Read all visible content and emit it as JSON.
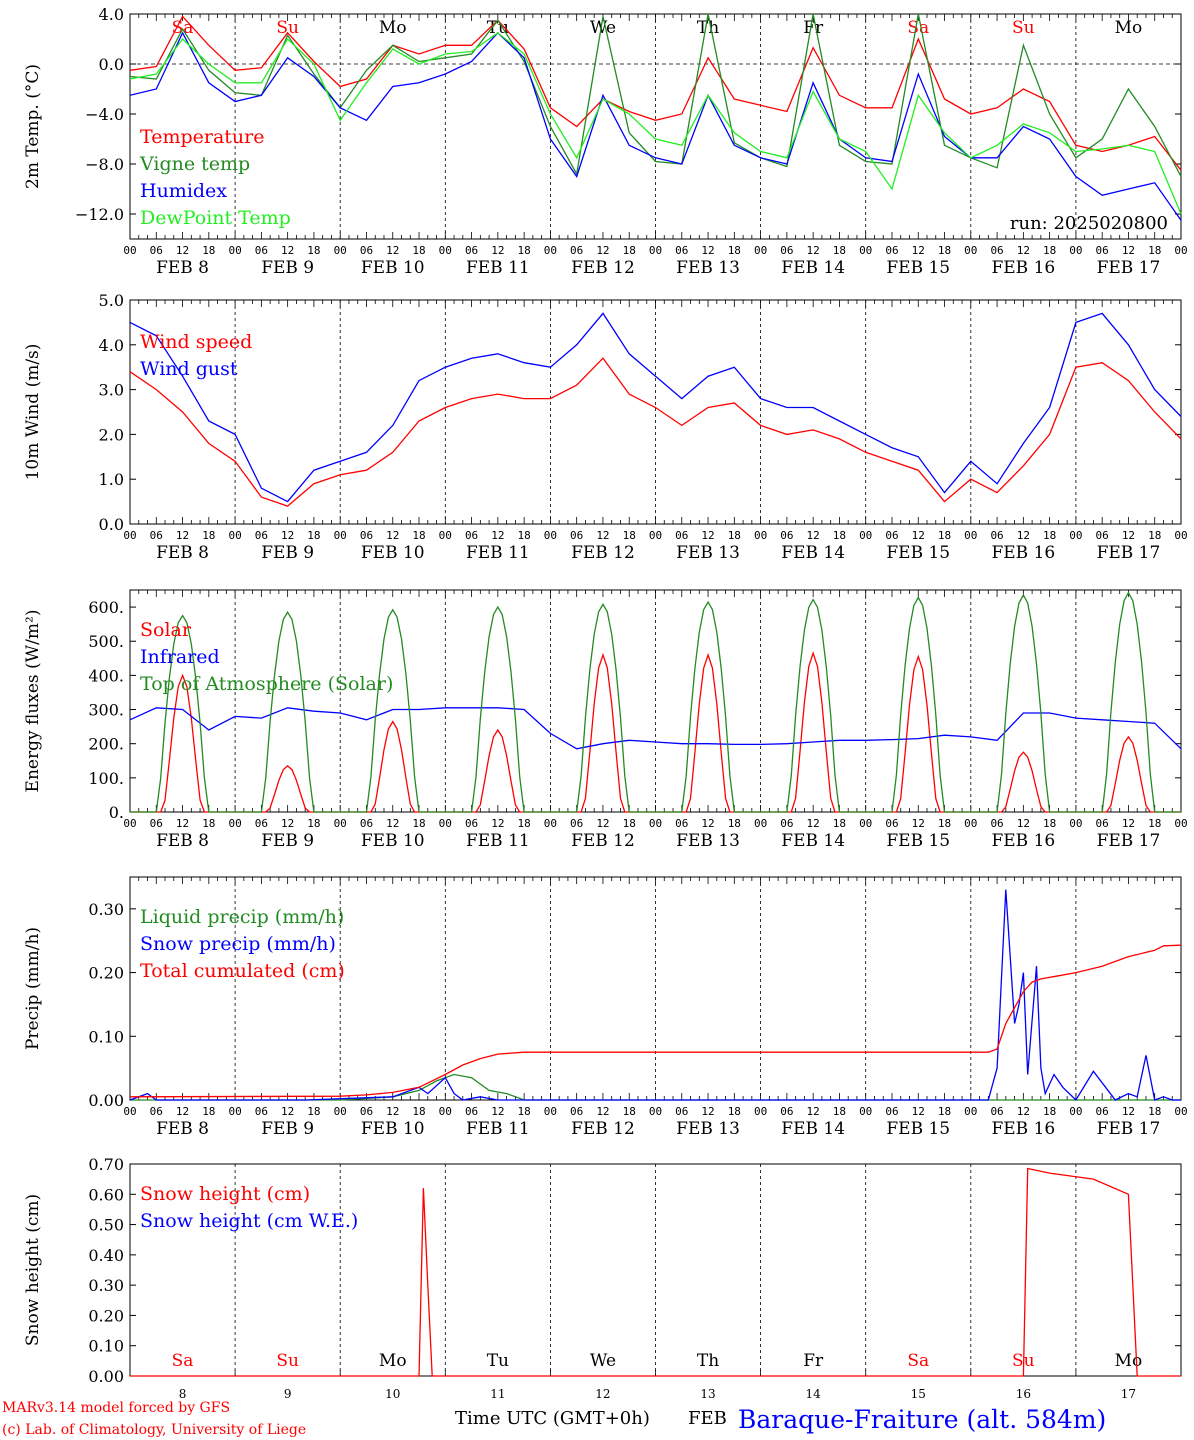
{
  "colors": {
    "red": "#ff0000",
    "dark_green": "#228b22",
    "blue": "#0000ff",
    "light_green": "#22ee22",
    "black": "#000000"
  },
  "days": [
    {
      "name": "Sa",
      "weekend": true,
      "date": "FEB  8",
      "num": "8"
    },
    {
      "name": "Su",
      "weekend": true,
      "date": "FEB  9",
      "num": "9"
    },
    {
      "name": "Mo",
      "weekend": false,
      "date": "FEB 10",
      "num": "10"
    },
    {
      "name": "Tu",
      "weekend": false,
      "date": "FEB 11",
      "num": "11"
    },
    {
      "name": "We",
      "weekend": false,
      "date": "FEB 12",
      "num": "12"
    },
    {
      "name": "Th",
      "weekend": false,
      "date": "FEB 13",
      "num": "13"
    },
    {
      "name": "Fr",
      "weekend": false,
      "date": "FEB 14",
      "num": "14"
    },
    {
      "name": "Sa",
      "weekend": true,
      "date": "FEB 15",
      "num": "15"
    },
    {
      "name": "Su",
      "weekend": true,
      "date": "FEB 16",
      "num": "16"
    },
    {
      "name": "Mo",
      "weekend": false,
      "date": "FEB 17",
      "num": "17"
    }
  ],
  "hour_ticks": [
    "00",
    "06",
    "12",
    "18"
  ],
  "final_tick": "00",
  "footer": {
    "model": "MARv3.14 model forced by GFS",
    "credit": "(c) Lab. of Climatology, University of Liege",
    "xlabel": "Time UTC (GMT+0h)",
    "month": "FEB",
    "station": "Baraque-Fraiture (alt. 584m)"
  },
  "chart_data": [
    {
      "type": "line",
      "ylabel": "2m Temp. (°C)",
      "ylim": [
        -14,
        4
      ],
      "yticks": [
        4,
        0,
        -4,
        -8,
        -12
      ],
      "ytick_labels": [
        "4.0",
        "0.0",
        "−4.0",
        "−8.0",
        "−12.0"
      ],
      "zero_line": true,
      "day_labels": true,
      "run_label": "run: 2025020800",
      "x_hours": [
        0,
        6,
        12,
        18,
        24,
        30,
        36,
        42,
        48,
        54,
        60,
        66,
        72,
        78,
        84,
        90,
        96,
        102,
        108,
        114,
        120,
        126,
        132,
        138,
        144,
        150,
        156,
        162,
        168,
        174,
        180,
        186,
        192,
        198,
        204,
        210,
        216,
        222,
        228,
        234,
        240
      ],
      "series": [
        {
          "name": "Temperature",
          "color": "#ff0000",
          "values": [
            -0.5,
            -0.2,
            3.8,
            1.5,
            -0.5,
            -0.3,
            2.5,
            0.2,
            -1.8,
            -1.2,
            1.5,
            0.8,
            1.5,
            1.5,
            3.5,
            1.2,
            -3.5,
            -5.0,
            -2.8,
            -3.8,
            -4.5,
            -4.0,
            0.5,
            -2.8,
            -3.3,
            -3.8,
            1.3,
            -2.5,
            -3.5,
            -3.5,
            2.0,
            -2.8,
            -4.0,
            -3.5,
            -2.0,
            -3.0,
            -6.5,
            -7.0,
            -6.5,
            -5.8,
            -8.5
          ]
        },
        {
          "name": "Vigne temp",
          "color": "#228b22",
          "values": [
            -1.0,
            -1.2,
            2.8,
            -0.5,
            -2.3,
            -2.5,
            2.3,
            -0.8,
            -3.5,
            -0.5,
            1.5,
            0.2,
            0.5,
            0.8,
            3.5,
            0.2,
            -5.0,
            -8.8,
            3.8,
            -5.5,
            -7.8,
            -8.0,
            4.0,
            -6.3,
            -7.5,
            -8.2,
            4.0,
            -6.5,
            -7.8,
            -8.0,
            4.0,
            -6.5,
            -7.5,
            -8.3,
            1.5,
            -4.0,
            -7.5,
            -6.0,
            -2.0,
            -5.0,
            -9.0
          ]
        },
        {
          "name": "Humidex",
          "color": "#0000ff",
          "values": [
            -2.5,
            -2.0,
            2.5,
            -1.5,
            -3.0,
            -2.5,
            0.5,
            -1.0,
            -3.5,
            -4.5,
            -1.8,
            -1.5,
            -0.8,
            0.2,
            2.5,
            0.5,
            -6.0,
            -9.0,
            -2.5,
            -6.5,
            -7.5,
            -8.0,
            -2.5,
            -6.5,
            -7.5,
            -8.0,
            -1.5,
            -6.0,
            -7.5,
            -7.8,
            -0.8,
            -5.8,
            -7.5,
            -7.5,
            -5.0,
            -6.0,
            -9.0,
            -10.5,
            -10.0,
            -9.5,
            -12.5
          ]
        },
        {
          "name": "DewPoint Temp",
          "color": "#22ee22",
          "values": [
            -1.2,
            -0.8,
            2.0,
            0.0,
            -1.5,
            -1.5,
            2.0,
            0.0,
            -4.5,
            -1.5,
            1.2,
            0.0,
            0.8,
            1.0,
            2.5,
            0.8,
            -4.0,
            -7.5,
            -2.8,
            -4.0,
            -6.0,
            -6.5,
            -2.5,
            -5.5,
            -7.0,
            -7.5,
            -2.2,
            -6.0,
            -7.0,
            -10.0,
            -2.5,
            -5.5,
            -7.5,
            -6.5,
            -4.8,
            -5.5,
            -7.0,
            -6.8,
            -6.5,
            -7.0,
            -12.0
          ]
        }
      ]
    },
    {
      "type": "line",
      "ylabel": "10m Wind (m/s)",
      "ylim": [
        0,
        5
      ],
      "yticks": [
        0,
        1,
        2,
        3,
        4,
        5
      ],
      "ytick_labels": [
        "0.0",
        "1.0",
        "2.0",
        "3.0",
        "4.0",
        "5.0"
      ],
      "x_hours": [
        0,
        6,
        12,
        18,
        24,
        30,
        36,
        42,
        48,
        54,
        60,
        66,
        72,
        78,
        84,
        90,
        96,
        102,
        108,
        114,
        120,
        126,
        132,
        138,
        144,
        150,
        156,
        162,
        168,
        174,
        180,
        186,
        192,
        198,
        204,
        210,
        216,
        222,
        228,
        234,
        240
      ],
      "series": [
        {
          "name": "Wind speed",
          "color": "#ff0000",
          "values": [
            3.4,
            3.0,
            2.5,
            1.8,
            1.4,
            0.6,
            0.4,
            0.9,
            1.1,
            1.2,
            1.6,
            2.3,
            2.6,
            2.8,
            2.9,
            2.8,
            2.8,
            3.1,
            3.7,
            2.9,
            2.6,
            2.2,
            2.6,
            2.7,
            2.2,
            2.0,
            2.1,
            1.9,
            1.6,
            1.4,
            1.2,
            0.5,
            1.0,
            0.7,
            1.3,
            2.0,
            3.5,
            3.6,
            3.2,
            2.5,
            1.9
          ]
        },
        {
          "name": "Wind gust",
          "color": "#0000ff",
          "values": [
            4.5,
            4.2,
            3.3,
            2.3,
            2.0,
            0.8,
            0.5,
            1.2,
            1.4,
            1.6,
            2.2,
            3.2,
            3.5,
            3.7,
            3.8,
            3.6,
            3.5,
            4.0,
            4.7,
            3.8,
            3.3,
            2.8,
            3.3,
            3.5,
            2.8,
            2.6,
            2.6,
            2.3,
            2.0,
            1.7,
            1.5,
            0.7,
            1.4,
            0.9,
            1.8,
            2.6,
            4.5,
            4.7,
            4.0,
            3.0,
            2.4
          ]
        }
      ]
    },
    {
      "type": "line",
      "ylabel": "Energy fluxes (W/m²)",
      "ylim": [
        0,
        650
      ],
      "yticks": [
        0,
        100,
        200,
        300,
        400,
        500,
        600
      ],
      "ytick_labels": [
        "0.",
        "100.",
        "200.",
        "300.",
        "400.",
        "500.",
        "600."
      ],
      "solar_peaks": [
        400,
        135,
        265,
        240,
        460,
        460,
        465,
        455,
        175,
        220
      ],
      "toa_peaks": [
        575,
        585,
        592,
        600,
        608,
        615,
        622,
        628,
        635,
        642
      ],
      "x_hours": [
        0,
        6,
        12,
        18,
        24,
        30,
        36,
        42,
        48,
        54,
        60,
        66,
        72,
        78,
        84,
        90,
        96,
        102,
        108,
        114,
        120,
        126,
        132,
        138,
        144,
        150,
        156,
        162,
        168,
        174,
        180,
        186,
        192,
        198,
        204,
        210,
        216,
        222,
        228,
        234,
        240
      ],
      "series": [
        {
          "name": "Solar",
          "color": "#ff0000",
          "values": []
        },
        {
          "name": "Infrared",
          "color": "#0000ff",
          "values": [
            270,
            305,
            300,
            240,
            280,
            275,
            305,
            295,
            290,
            270,
            300,
            300,
            305,
            305,
            305,
            300,
            230,
            185,
            200,
            210,
            205,
            200,
            200,
            198,
            198,
            200,
            205,
            210,
            210,
            212,
            215,
            225,
            220,
            210,
            290,
            290,
            275,
            270,
            265,
            260,
            185
          ]
        },
        {
          "name": "Top of Atmosphere (Solar)",
          "color": "#228b22",
          "values": []
        }
      ]
    },
    {
      "type": "line",
      "ylabel": "Precip (mm/h)",
      "ylim": [
        0,
        0.35
      ],
      "yticks": [
        0,
        0.1,
        0.2,
        0.3
      ],
      "ytick_labels": [
        "0.00",
        "0.10",
        "0.20",
        "0.30"
      ],
      "series": [
        {
          "name": "Liquid precip (mm/h)",
          "color": "#228b22",
          "x_hours": [
            0,
            48,
            60,
            66,
            70,
            74,
            78,
            82,
            86,
            90,
            240
          ],
          "values": [
            0,
            0,
            0.005,
            0.015,
            0.03,
            0.04,
            0.035,
            0.015,
            0.01,
            0,
            0
          ]
        },
        {
          "name": "Snow precip (mm/h)",
          "color": "#0000ff",
          "x_hours": [
            0,
            4,
            6,
            40,
            60,
            66,
            68,
            72,
            74,
            76,
            80,
            84,
            196,
            198,
            200,
            202,
            203,
            204,
            205,
            207,
            208,
            209,
            211,
            213,
            216,
            220,
            225,
            228,
            230,
            232,
            234,
            236,
            238,
            240
          ],
          "values": [
            0,
            0.01,
            0,
            0,
            0.005,
            0.02,
            0.01,
            0.035,
            0.01,
            0,
            0.005,
            0,
            0,
            0.05,
            0.33,
            0.12,
            0.15,
            0.2,
            0.04,
            0.21,
            0.05,
            0.01,
            0.04,
            0.02,
            0,
            0.045,
            0,
            0.01,
            0.005,
            0.07,
            0,
            0.005,
            0,
            0
          ]
        },
        {
          "name": "Total cumulated (cm)",
          "color": "#ff0000",
          "x_hours": [
            0,
            48,
            54,
            60,
            66,
            72,
            76,
            80,
            84,
            90,
            96,
            190,
            196,
            198,
            200,
            204,
            206,
            208,
            212,
            216,
            222,
            228,
            234,
            236,
            240
          ],
          "values": [
            0.005,
            0.006,
            0.008,
            0.012,
            0.02,
            0.04,
            0.055,
            0.065,
            0.072,
            0.075,
            0.075,
            0.075,
            0.075,
            0.08,
            0.12,
            0.17,
            0.185,
            0.19,
            0.195,
            0.2,
            0.21,
            0.225,
            0.235,
            0.242,
            0.243
          ]
        }
      ]
    },
    {
      "type": "line",
      "ylabel": "Snow height (cm)",
      "ylim": [
        0,
        0.7
      ],
      "yticks": [
        0,
        0.1,
        0.2,
        0.3,
        0.4,
        0.5,
        0.6,
        0.7
      ],
      "ytick_labels": [
        "0.00",
        "0.10",
        "0.20",
        "0.30",
        "0.40",
        "0.50",
        "0.60",
        "0.70"
      ],
      "day_labels_bottom": true,
      "series": [
        {
          "name": "Snow height (cm)",
          "color": "#ff0000",
          "x_hours": [
            0,
            66,
            67,
            68,
            69,
            204,
            205,
            210,
            215,
            220,
            228,
            229,
            230,
            240
          ],
          "values": [
            0,
            0,
            0.62,
            0.3,
            0,
            0,
            0.685,
            0.67,
            0.66,
            0.65,
            0.6,
            0.3,
            0,
            0
          ]
        },
        {
          "name": "Snow height (cm W.E.)",
          "color": "#0000ff",
          "x_hours": [],
          "values": []
        }
      ]
    }
  ]
}
